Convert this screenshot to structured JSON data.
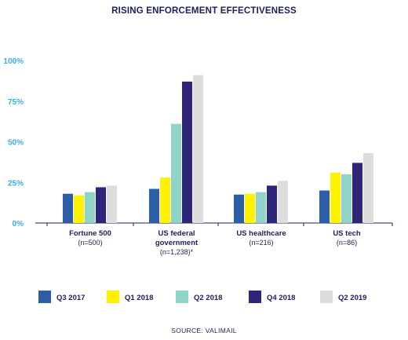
{
  "chart_data": {
    "type": "bar",
    "title": "RISING ENFORCEMENT EFFECTIVENESS",
    "ylim": [
      0,
      100
    ],
    "yticks": [
      "0%",
      "25%",
      "50%",
      "75%",
      "100%"
    ],
    "grid": false,
    "legend_position": "bottom",
    "categories": [
      {
        "label": "Fortune 500",
        "sub": [
          "(n=500)"
        ]
      },
      {
        "label": "US federal",
        "sub": [
          "government",
          "(n=1,238)*"
        ]
      },
      {
        "label": "US healthcare",
        "sub": [
          "(n=216)"
        ]
      },
      {
        "label": "US tech",
        "sub": [
          "(n=86)"
        ]
      }
    ],
    "series": [
      {
        "name": "Q3 2017",
        "color": "#2b5ea7",
        "values": [
          18,
          21,
          17.5,
          20
        ]
      },
      {
        "name": "Q1 2018",
        "color": "#fff200",
        "values": [
          17,
          28,
          18,
          31
        ]
      },
      {
        "name": "Q2 2018",
        "color": "#8fd3c9",
        "values": [
          19,
          61,
          19,
          30
        ]
      },
      {
        "name": "Q4 2018",
        "color": "#2d2577",
        "values": [
          22,
          87,
          23,
          37
        ]
      },
      {
        "name": "Q2 2019",
        "color": "#dddedb",
        "values": [
          23,
          91,
          26,
          43
        ]
      }
    ],
    "source": "SOURCE: VALIMAIL"
  }
}
